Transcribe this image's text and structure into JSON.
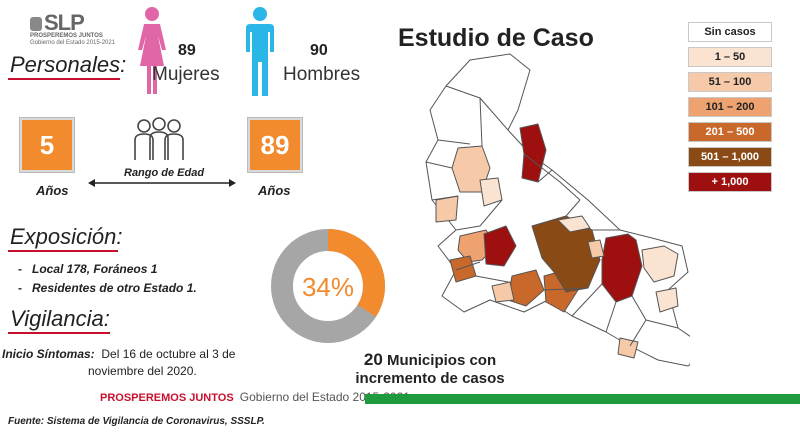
{
  "logo": {
    "mark": "SLP",
    "tagline1": "PROSPEREMOS JUNTOS",
    "tagline2": "Gobierno del Estado 2015-2021"
  },
  "title": "Estudio de Caso",
  "personales": {
    "heading": "Personales:",
    "mujeres_count": "89",
    "mujeres_label": "Mujeres",
    "hombres_count": "90",
    "hombres_label": "Hombres"
  },
  "edad": {
    "min": "5",
    "max": "89",
    "min_unit": "Años",
    "max_unit": "Años",
    "range_label": "Rango de Edad"
  },
  "exposicion": {
    "heading": "Exposición:",
    "items": [
      "Local  178, Foráneos 1",
      "Residentes de otro Estado 1."
    ]
  },
  "vigilancia": {
    "heading": "Vigilancia:",
    "label": "Inicio Síntomas:",
    "text1": "Del 16 de octubre al 3 de",
    "text2": "noviembre del 2020."
  },
  "donut": {
    "percent": 34,
    "label": "34%",
    "color_fill": "#f28a2e",
    "color_rest": "#a6a6a6"
  },
  "municipios": {
    "line1": "20 Municipios con",
    "line2": "incremento de casos",
    "count": "20",
    "line1_rest": " Municipios con"
  },
  "legend": [
    {
      "label": "Sin casos",
      "color": "#ffffff",
      "text_color": "#222222"
    },
    {
      "label": "1 – 50",
      "color": "#fbe3d2",
      "text_color": "#222222"
    },
    {
      "label": "51 – 100",
      "color": "#f6c9a8",
      "text_color": "#222222"
    },
    {
      "label": "101 – 200",
      "color": "#eea270",
      "text_color": "#222222"
    },
    {
      "label": "201 – 500",
      "color": "#c8692b",
      "text_color": "#ffffff"
    },
    {
      "label": "501 – 1,000",
      "color": "#8a4a16",
      "text_color": "#ffffff"
    },
    {
      "label": "+ 1,000",
      "color": "#9e1010",
      "text_color": "#ffffff"
    }
  ],
  "footer": {
    "brand": "PROSPEREMOS JUNTOS",
    "gov": "Gobierno del Estado 2015-2021",
    "source": "Fuente: Sistema de Vigilancia de Coronavirus, SSSLP.",
    "brand_color": "#c8102e",
    "band_color": "#1f9a3f"
  }
}
